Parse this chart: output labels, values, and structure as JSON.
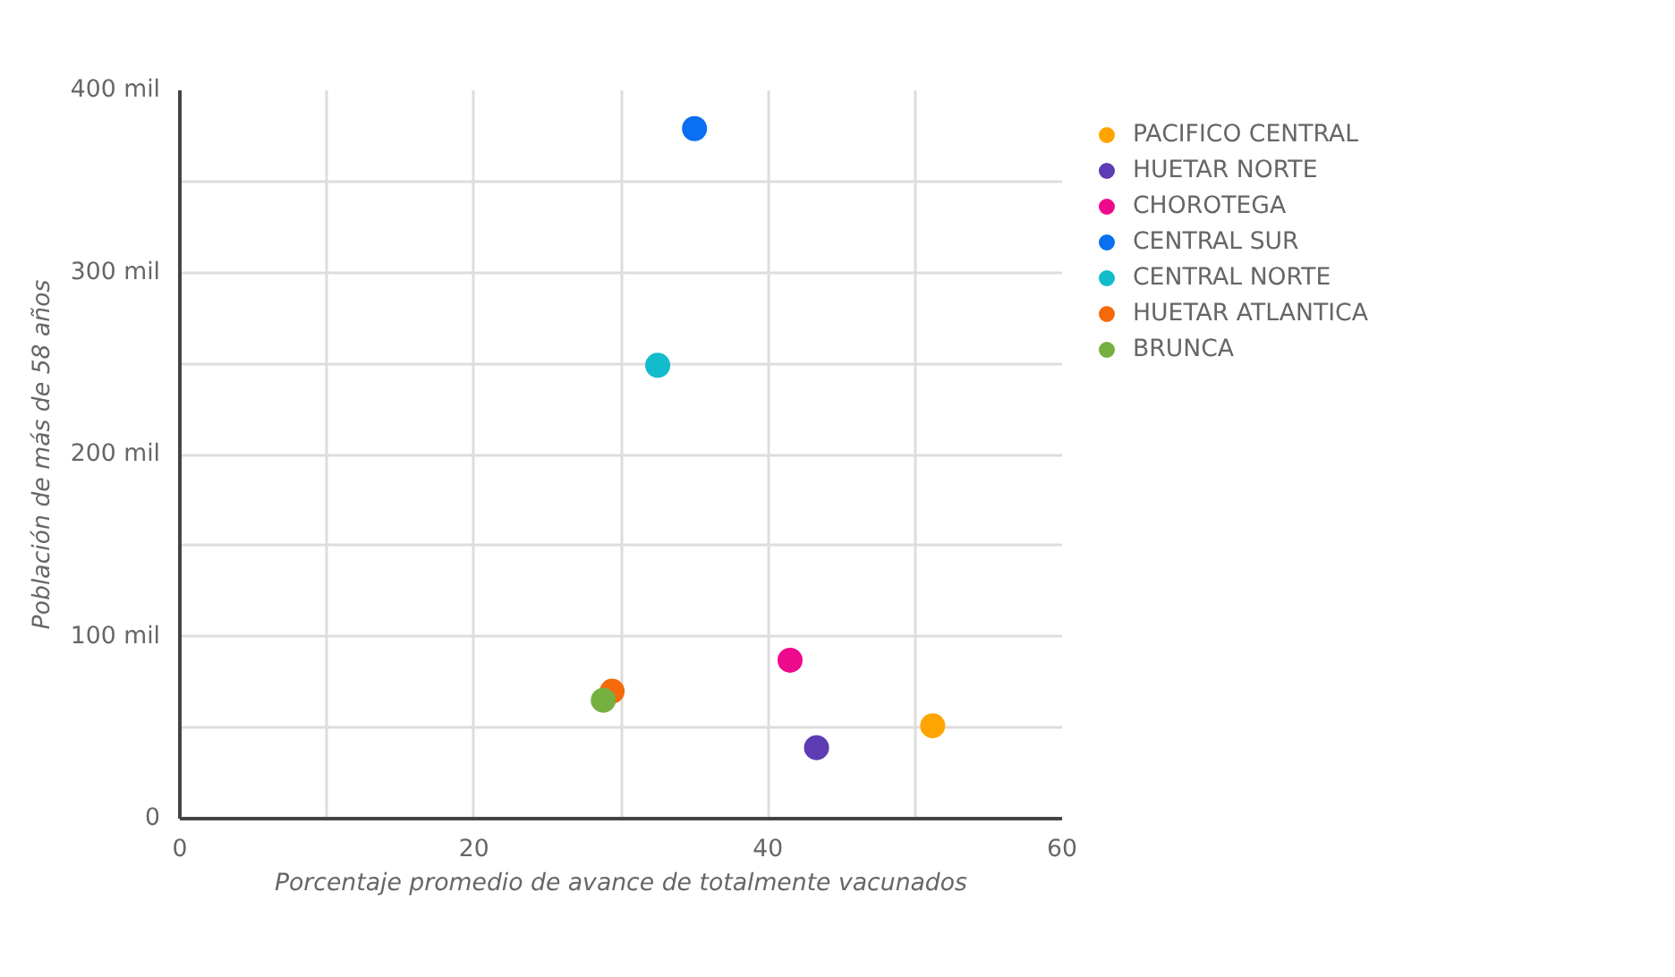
{
  "chart_data": {
    "type": "scatter",
    "xlabel": "Porcentaje promedio de avance de totalmente vacunados",
    "ylabel": "Población de más de 58 años",
    "xlim": [
      0,
      60
    ],
    "ylim": [
      0,
      400
    ],
    "xticks": [
      0,
      {
        "value": 10,
        "label": null
      },
      20,
      {
        "value": 30,
        "label": null
      },
      40,
      {
        "value": 50,
        "label": null
      },
      60
    ],
    "yticks": [
      {
        "value": 0,
        "label": "0"
      },
      {
        "value": 50,
        "label": null
      },
      {
        "value": 100,
        "label": "100 mil"
      },
      {
        "value": 150,
        "label": null
      },
      {
        "value": 200,
        "label": "200 mil"
      },
      {
        "value": 250,
        "label": null
      },
      {
        "value": 300,
        "label": "300 mil"
      },
      {
        "value": 350,
        "label": null
      },
      {
        "value": 400,
        "label": "400 mil"
      }
    ],
    "grid": true,
    "legend": "right",
    "marker": "circle",
    "series": [
      {
        "name": "PACIFICO CENTRAL",
        "color": "#ffa400",
        "x": [
          51.2
        ],
        "values": [
          51
        ]
      },
      {
        "name": "HUETAR NORTE",
        "color": "#5e3cb4",
        "x": [
          43.3
        ],
        "values": [
          39
        ]
      },
      {
        "name": "CHOROTEGA",
        "color": "#ee0a8c",
        "x": [
          41.5
        ],
        "values": [
          87
        ]
      },
      {
        "name": "CENTRAL SUR",
        "color": "#0a6ff0",
        "x": [
          35.0
        ],
        "values": [
          379
        ]
      },
      {
        "name": "CENTRAL NORTE",
        "color": "#12bccc",
        "x": [
          32.5
        ],
        "values": [
          249
        ]
      },
      {
        "name": "HUETAR ATLANTICA",
        "color": "#f46a0a",
        "x": [
          29.4
        ],
        "values": [
          70
        ]
      },
      {
        "name": "BRUNCA",
        "color": "#76b041",
        "x": [
          28.8
        ],
        "values": [
          65
        ]
      }
    ]
  }
}
